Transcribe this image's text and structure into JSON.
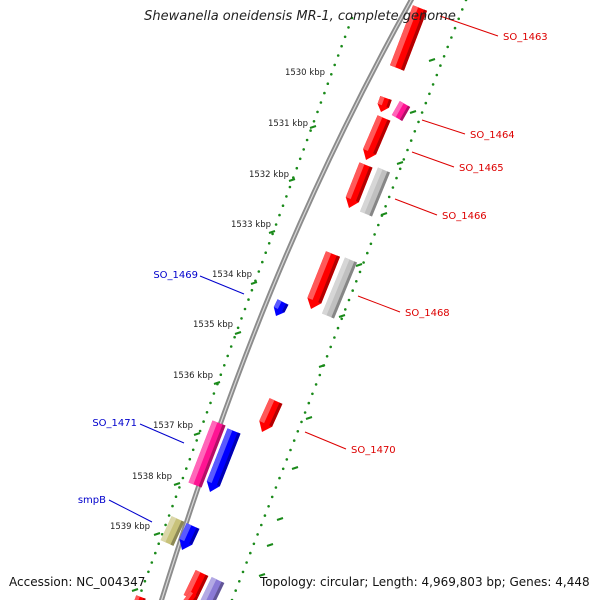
{
  "title": "Shewanella oneidensis MR-1, complete genome",
  "accession_text": "Accession: NC_004347",
  "topology_text": "Topology: circular; Length: 4,969,803 bp; Genes: 4,448",
  "colors": {
    "backbone": "#8c8c8c",
    "tick_dots": "#1a8a1a",
    "red_gene": "#ff0000",
    "magenta_gene": "#ff1493",
    "blue_gene": "#0000ff",
    "gray_gene": "#c0c0c0",
    "olive_gene": "#c8c27a",
    "lavender_gene": "#8a7ad6",
    "label_red": "#dd0000",
    "label_blue": "#0000cc"
  },
  "ruler": [
    {
      "label": "1530 kbp"
    },
    {
      "label": "1531 kbp"
    },
    {
      "label": "1532 kbp"
    },
    {
      "label": "1533 kbp"
    },
    {
      "label": "1534 kbp"
    },
    {
      "label": "1535 kbp"
    },
    {
      "label": "1536 kbp"
    },
    {
      "label": "1537 kbp"
    },
    {
      "label": "1538 kbp"
    },
    {
      "label": "1539 kbp"
    }
  ],
  "gene_labels": [
    {
      "label": "SO_1463",
      "color": "red"
    },
    {
      "label": "SO_1464",
      "color": "red"
    },
    {
      "label": "SO_1465",
      "color": "red"
    },
    {
      "label": "SO_1466",
      "color": "red"
    },
    {
      "label": "SO_1468",
      "color": "red"
    },
    {
      "label": "SO_1470",
      "color": "red"
    },
    {
      "label": "SO_1469",
      "color": "blue"
    },
    {
      "label": "SO_1471",
      "color": "blue"
    },
    {
      "label": "smpB",
      "color": "blue"
    }
  ]
}
